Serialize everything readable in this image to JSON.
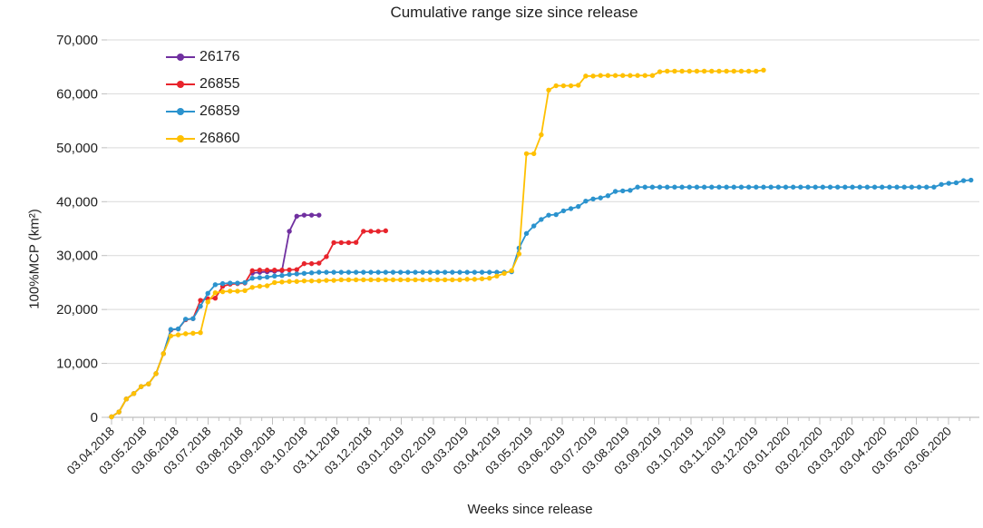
{
  "title": "Cumulative range size since release",
  "chart_data": {
    "type": "line",
    "title": "Cumulative range size since release",
    "xlabel": "Weeks since release",
    "ylabel": "100%MCP (km²)",
    "ylim": [
      0,
      70000
    ],
    "ytick_step": 10000,
    "yticks": [
      {
        "value": 0,
        "label": "0"
      },
      {
        "value": 10000,
        "label": "10,000"
      },
      {
        "value": 20000,
        "label": "20,000"
      },
      {
        "value": 30000,
        "label": "30,000"
      },
      {
        "value": 40000,
        "label": "40,000"
      },
      {
        "value": 50000,
        "label": "50,000"
      },
      {
        "value": 60000,
        "label": "60,000"
      },
      {
        "value": 70000,
        "label": "70,000"
      }
    ],
    "xtick_labels": [
      "03.04.2018",
      "03.05.2018",
      "03.06.2018",
      "03.07.2018",
      "03.08.2018",
      "03.09.2018",
      "03.10.2018",
      "03.11.2018",
      "03.12.2018",
      "03.01.2019",
      "03.02.2019",
      "03.03.2019",
      "03.04.2019",
      "03.05.2019",
      "03.06.2019",
      "03.07.2019",
      "03.08.2019",
      "03.09.2019",
      "03.10.2019",
      "03.11.2019",
      "03.12.2019",
      "03.01.2020",
      "03.02.2020",
      "03.03.2020",
      "03.04.2020",
      "03.05.2020",
      "03.06.2020"
    ],
    "x_unit": "weeks_since_release",
    "grid": "horizontal",
    "legend_position": "inside-top-left",
    "series": [
      {
        "name": "26176",
        "color": "#7030A0",
        "points": [
          [
            19,
            26750
          ],
          [
            20,
            26900
          ],
          [
            21,
            27000
          ],
          [
            22,
            27100
          ],
          [
            23,
            27200
          ],
          [
            24,
            34500
          ],
          [
            25,
            37300
          ],
          [
            26,
            37500
          ],
          [
            27,
            37500
          ],
          [
            28,
            37500
          ]
        ]
      },
      {
        "name": "26855",
        "color": "#E8242C",
        "points": [
          [
            0,
            100
          ],
          [
            1,
            1000
          ],
          [
            2,
            3400
          ],
          [
            3,
            4400
          ],
          [
            4,
            5700
          ],
          [
            5,
            6200
          ],
          [
            6,
            8100
          ],
          [
            7,
            11800
          ],
          [
            8,
            16200
          ],
          [
            9,
            16400
          ],
          [
            10,
            18100
          ],
          [
            11,
            18300
          ],
          [
            12,
            21700
          ],
          [
            13,
            22000
          ],
          [
            14,
            22100
          ],
          [
            15,
            24300
          ],
          [
            16,
            24700
          ],
          [
            17,
            24800
          ],
          [
            18,
            24900
          ],
          [
            19,
            27200
          ],
          [
            20,
            27300
          ],
          [
            21,
            27300
          ],
          [
            22,
            27300
          ],
          [
            23,
            27300
          ],
          [
            24,
            27350
          ],
          [
            25,
            27400
          ],
          [
            26,
            28500
          ],
          [
            27,
            28500
          ],
          [
            28,
            28600
          ],
          [
            29,
            29800
          ],
          [
            30,
            32400
          ],
          [
            31,
            32400
          ],
          [
            32,
            32400
          ],
          [
            33,
            32450
          ],
          [
            34,
            34500
          ],
          [
            35,
            34500
          ],
          [
            36,
            34500
          ],
          [
            37,
            34600
          ]
        ]
      },
      {
        "name": "26859",
        "color": "#2B93CE",
        "points": [
          [
            0,
            100
          ],
          [
            1,
            1000
          ],
          [
            2,
            3400
          ],
          [
            3,
            4400
          ],
          [
            4,
            5700
          ],
          [
            5,
            6200
          ],
          [
            6,
            8100
          ],
          [
            7,
            11800
          ],
          [
            8,
            16300
          ],
          [
            9,
            16400
          ],
          [
            10,
            18200
          ],
          [
            11,
            18300
          ],
          [
            12,
            20600
          ],
          [
            13,
            23000
          ],
          [
            14,
            24600
          ],
          [
            15,
            24800
          ],
          [
            16,
            24900
          ],
          [
            17,
            24900
          ],
          [
            18,
            25000
          ],
          [
            19,
            25800
          ],
          [
            20,
            25900
          ],
          [
            21,
            26000
          ],
          [
            22,
            26200
          ],
          [
            23,
            26300
          ],
          [
            24,
            26500
          ],
          [
            25,
            26600
          ],
          [
            26,
            26700
          ],
          [
            27,
            26800
          ],
          [
            28,
            26900
          ],
          [
            29,
            26900
          ],
          [
            30,
            26900
          ],
          [
            31,
            26900
          ],
          [
            32,
            26900
          ],
          [
            33,
            26900
          ],
          [
            34,
            26900
          ],
          [
            35,
            26900
          ],
          [
            36,
            26900
          ],
          [
            37,
            26900
          ],
          [
            38,
            26900
          ],
          [
            39,
            26900
          ],
          [
            40,
            26900
          ],
          [
            41,
            26900
          ],
          [
            42,
            26900
          ],
          [
            43,
            26900
          ],
          [
            44,
            26900
          ],
          [
            45,
            26900
          ],
          [
            46,
            26900
          ],
          [
            47,
            26900
          ],
          [
            48,
            26900
          ],
          [
            49,
            26900
          ],
          [
            50,
            26900
          ],
          [
            51,
            26900
          ],
          [
            52,
            26900
          ],
          [
            53,
            26900
          ],
          [
            54,
            27000
          ],
          [
            55,
            31400
          ],
          [
            56,
            34100
          ],
          [
            57,
            35500
          ],
          [
            58,
            36700
          ],
          [
            59,
            37500
          ],
          [
            60,
            37600
          ],
          [
            61,
            38300
          ],
          [
            62,
            38700
          ],
          [
            63,
            39100
          ],
          [
            64,
            40100
          ],
          [
            65,
            40500
          ],
          [
            66,
            40700
          ],
          [
            67,
            41100
          ],
          [
            68,
            41900
          ],
          [
            69,
            42000
          ],
          [
            70,
            42100
          ],
          [
            71,
            42700
          ],
          [
            72,
            42700
          ],
          [
            73,
            42700
          ],
          [
            74,
            42700
          ],
          [
            75,
            42700
          ],
          [
            76,
            42700
          ],
          [
            77,
            42700
          ],
          [
            78,
            42700
          ],
          [
            79,
            42700
          ],
          [
            80,
            42700
          ],
          [
            81,
            42700
          ],
          [
            82,
            42700
          ],
          [
            83,
            42700
          ],
          [
            84,
            42700
          ],
          [
            85,
            42700
          ],
          [
            86,
            42700
          ],
          [
            87,
            42700
          ],
          [
            88,
            42700
          ],
          [
            89,
            42700
          ],
          [
            90,
            42700
          ],
          [
            91,
            42700
          ],
          [
            92,
            42700
          ],
          [
            93,
            42700
          ],
          [
            94,
            42700
          ],
          [
            95,
            42700
          ],
          [
            96,
            42700
          ],
          [
            97,
            42700
          ],
          [
            98,
            42700
          ],
          [
            99,
            42700
          ],
          [
            100,
            42700
          ],
          [
            101,
            42700
          ],
          [
            102,
            42700
          ],
          [
            103,
            42700
          ],
          [
            104,
            42700
          ],
          [
            105,
            42700
          ],
          [
            106,
            42700
          ],
          [
            107,
            42700
          ],
          [
            108,
            42700
          ],
          [
            109,
            42700
          ],
          [
            110,
            42700
          ],
          [
            111,
            42700
          ],
          [
            112,
            43200
          ],
          [
            113,
            43400
          ],
          [
            114,
            43500
          ],
          [
            115,
            43900
          ],
          [
            116,
            44000
          ]
        ]
      },
      {
        "name": "26860",
        "color": "#FFC000",
        "points": [
          [
            0,
            100
          ],
          [
            1,
            1000
          ],
          [
            2,
            3400
          ],
          [
            3,
            4400
          ],
          [
            4,
            5700
          ],
          [
            5,
            6200
          ],
          [
            6,
            8100
          ],
          [
            7,
            11800
          ],
          [
            8,
            15100
          ],
          [
            9,
            15300
          ],
          [
            10,
            15500
          ],
          [
            11,
            15600
          ],
          [
            12,
            15700
          ],
          [
            13,
            21400
          ],
          [
            14,
            23100
          ],
          [
            15,
            23300
          ],
          [
            16,
            23400
          ],
          [
            17,
            23400
          ],
          [
            18,
            23500
          ],
          [
            19,
            24100
          ],
          [
            20,
            24300
          ],
          [
            21,
            24400
          ],
          [
            22,
            25000
          ],
          [
            23,
            25100
          ],
          [
            24,
            25200
          ],
          [
            25,
            25200
          ],
          [
            26,
            25300
          ],
          [
            27,
            25300
          ],
          [
            28,
            25300
          ],
          [
            29,
            25400
          ],
          [
            30,
            25400
          ],
          [
            31,
            25500
          ],
          [
            32,
            25500
          ],
          [
            33,
            25500
          ],
          [
            34,
            25500
          ],
          [
            35,
            25500
          ],
          [
            36,
            25500
          ],
          [
            37,
            25500
          ],
          [
            38,
            25500
          ],
          [
            39,
            25500
          ],
          [
            40,
            25500
          ],
          [
            41,
            25500
          ],
          [
            42,
            25500
          ],
          [
            43,
            25500
          ],
          [
            44,
            25500
          ],
          [
            45,
            25500
          ],
          [
            46,
            25500
          ],
          [
            47,
            25500
          ],
          [
            48,
            25600
          ],
          [
            49,
            25600
          ],
          [
            50,
            25700
          ],
          [
            51,
            25800
          ],
          [
            52,
            26200
          ],
          [
            53,
            26700
          ],
          [
            54,
            27200
          ],
          [
            55,
            30300
          ],
          [
            56,
            48900
          ],
          [
            57,
            48900
          ],
          [
            58,
            52400
          ],
          [
            59,
            60700
          ],
          [
            60,
            61500
          ],
          [
            61,
            61500
          ],
          [
            62,
            61500
          ],
          [
            63,
            61600
          ],
          [
            64,
            63300
          ],
          [
            65,
            63300
          ],
          [
            66,
            63400
          ],
          [
            67,
            63400
          ],
          [
            68,
            63400
          ],
          [
            69,
            63400
          ],
          [
            70,
            63400
          ],
          [
            71,
            63400
          ],
          [
            72,
            63400
          ],
          [
            73,
            63400
          ],
          [
            74,
            64100
          ],
          [
            75,
            64200
          ],
          [
            76,
            64200
          ],
          [
            77,
            64200
          ],
          [
            78,
            64200
          ],
          [
            79,
            64200
          ],
          [
            80,
            64200
          ],
          [
            81,
            64200
          ],
          [
            82,
            64200
          ],
          [
            83,
            64200
          ],
          [
            84,
            64200
          ],
          [
            85,
            64200
          ],
          [
            86,
            64200
          ],
          [
            87,
            64200
          ],
          [
            88,
            64400
          ]
        ]
      }
    ]
  },
  "colors": {
    "gridline": "#D9D9D9",
    "axis": "#BFBFBF",
    "text": "#1f1f1f"
  }
}
